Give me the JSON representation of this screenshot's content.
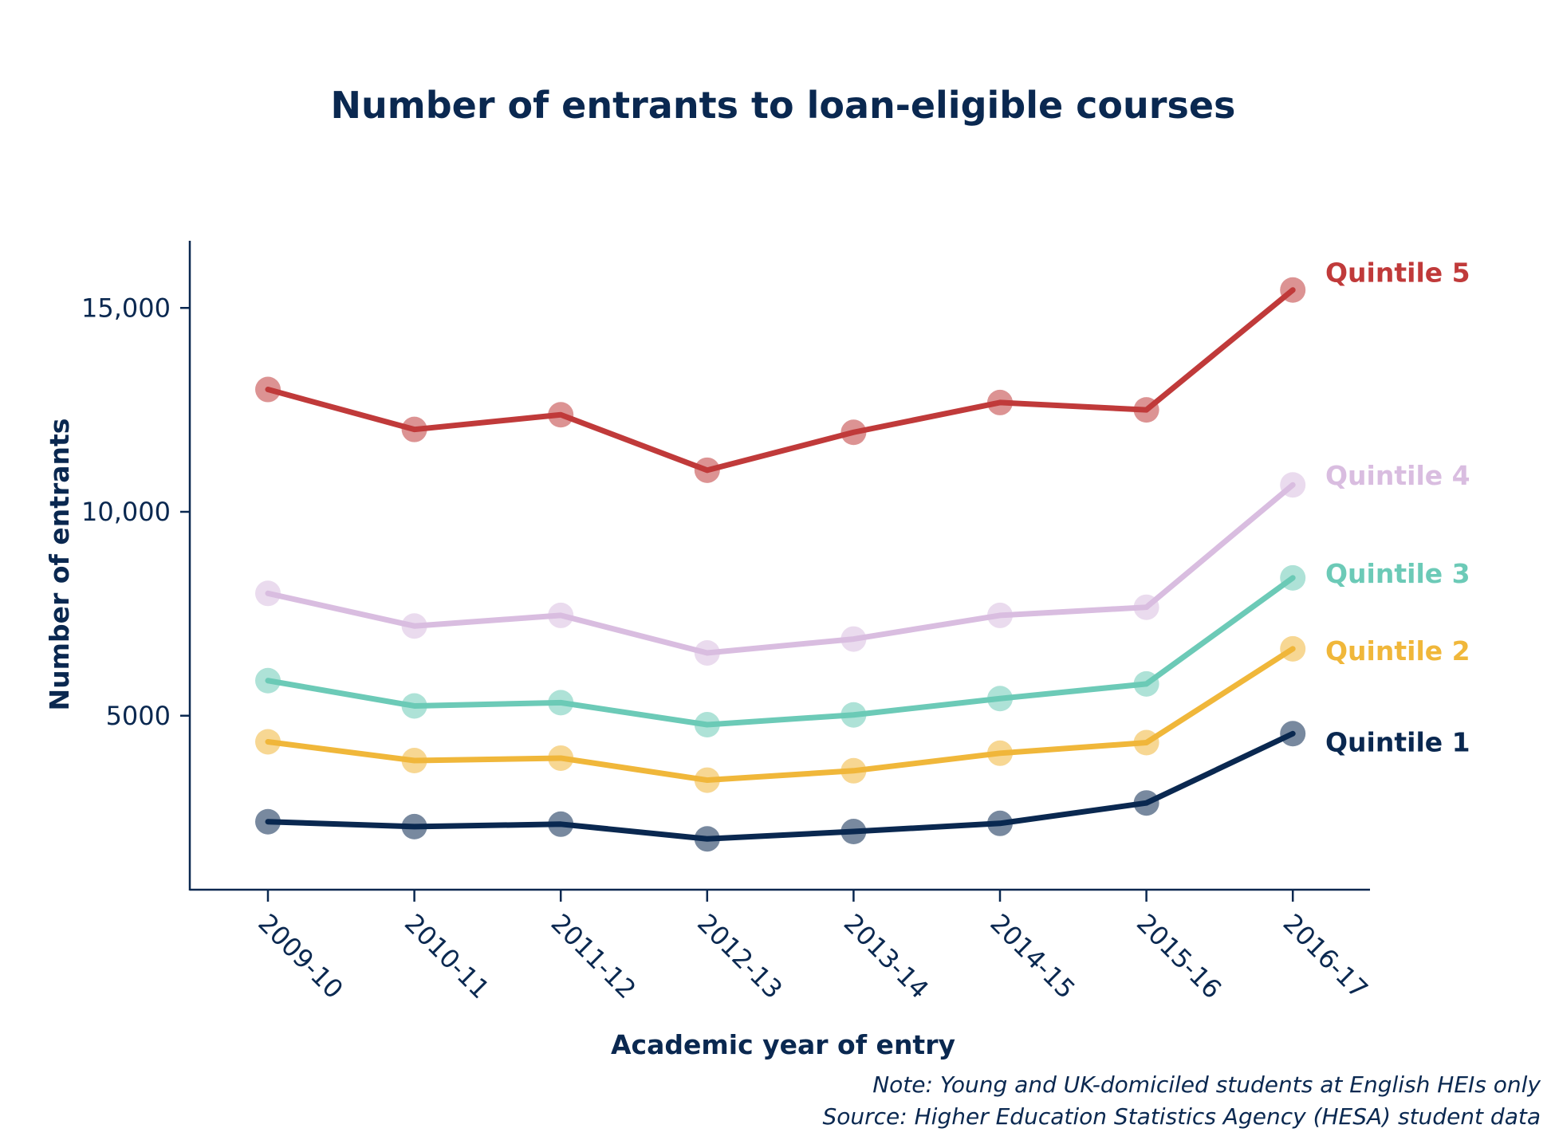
{
  "chart_data": {
    "type": "line",
    "title": "Number of entrants to loan-eligible courses",
    "xlabel": "Academic year of entry",
    "ylabel": "Number of entrants",
    "categories": [
      "2009-10",
      "2010-11",
      "2011-12",
      "2012-13",
      "2013-14",
      "2014-15",
      "2015-16",
      "2016-17"
    ],
    "ylim": [
      1000,
      17000
    ],
    "yticks": [
      {
        "value": 5000,
        "label": "5000"
      },
      {
        "value": 10000,
        "label": "10,000"
      },
      {
        "value": 15000,
        "label": "15,000"
      }
    ],
    "grid": false,
    "legend": "direct labels at right end of lines",
    "series": [
      {
        "name": "Quintile 5",
        "color": "#c03a3a",
        "values": [
          13000,
          12020,
          12380,
          11020,
          11950,
          12680,
          12500,
          15440
        ]
      },
      {
        "name": "Quintile 4",
        "color": "#d9bde0",
        "values": [
          8000,
          7200,
          7460,
          6540,
          6880,
          7460,
          7660,
          10660
        ]
      },
      {
        "name": "Quintile 3",
        "color": "#6ccab7",
        "values": [
          5860,
          5240,
          5320,
          4780,
          5020,
          5420,
          5780,
          8380
        ]
      },
      {
        "name": "Quintile 2",
        "color": "#f0b73a",
        "values": [
          4360,
          3900,
          3960,
          3420,
          3650,
          4080,
          4340,
          6640
        ]
      },
      {
        "name": "Quintile 1",
        "color": "#0a2850",
        "values": [
          2400,
          2280,
          2340,
          1980,
          2160,
          2360,
          2860,
          4560
        ]
      }
    ]
  },
  "notes": {
    "note": "Note: Young and UK-domiciled students at English HEIs only",
    "source": "Source: Higher Education Statistics Agency (HESA) student data"
  }
}
